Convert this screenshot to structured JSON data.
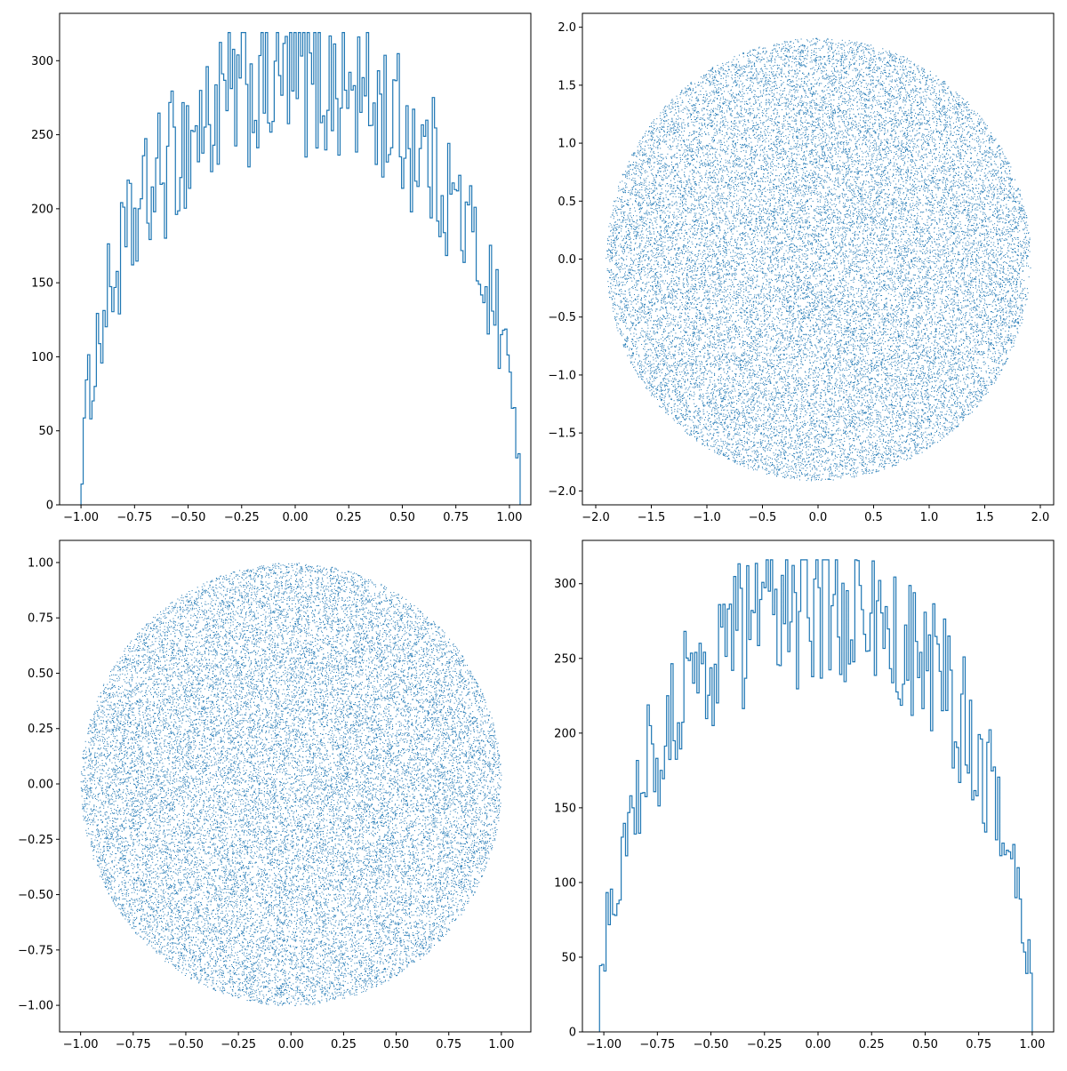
{
  "figure": {
    "color": "#1f77b4"
  },
  "chart_data": [
    {
      "type": "histogram",
      "position": "top-left",
      "title": "",
      "xlabel": "",
      "ylabel": "",
      "xlim": [
        -1.1,
        1.1
      ],
      "ylim": [
        0,
        332
      ],
      "xticks": [
        -1.0,
        -0.75,
        -0.5,
        -0.25,
        0.0,
        0.25,
        0.5,
        0.75,
        1.0
      ],
      "xtick_labels": [
        "−1.00",
        "−0.75",
        "−0.50",
        "−0.25",
        "0.00",
        "0.25",
        "0.50",
        "0.75",
        "1.00"
      ],
      "yticks": [
        0,
        50,
        100,
        150,
        200,
        250,
        300
      ],
      "ytick_labels": [
        "0",
        "50",
        "100",
        "150",
        "200",
        "250",
        "300"
      ],
      "bin_range": [
        -1.0,
        1.05
      ],
      "bins": 200,
      "peak_count": 319,
      "histtype": "step"
    },
    {
      "type": "scatter",
      "position": "top-right",
      "title": "",
      "xlabel": "",
      "ylabel": "",
      "xlim": [
        -2.12,
        2.12
      ],
      "ylim": [
        -2.12,
        2.12
      ],
      "xticks": [
        -2.0,
        -1.5,
        -1.0,
        -0.5,
        0.0,
        0.5,
        1.0,
        1.5,
        2.0
      ],
      "xtick_labels": [
        "−2.0",
        "−1.5",
        "−1.0",
        "−0.5",
        "0.0",
        "0.5",
        "1.0",
        "1.5",
        "2.0"
      ],
      "yticks": [
        -2.0,
        -1.5,
        -1.0,
        -0.5,
        0.0,
        0.5,
        1.0,
        1.5,
        2.0
      ],
      "ytick_labels": [
        "−2.0",
        "−1.5",
        "−1.0",
        "−0.5",
        "0.0",
        "0.5",
        "1.0",
        "1.5",
        "2.0"
      ],
      "shape": "disk",
      "center": [
        0.0,
        0.0
      ],
      "radius": 1.91,
      "marker": "pixel"
    },
    {
      "type": "scatter",
      "position": "bottom-left",
      "title": "",
      "xlabel": "",
      "ylabel": "",
      "xlim": [
        -1.1,
        1.14
      ],
      "ylim": [
        -1.12,
        1.1
      ],
      "xticks": [
        -1.0,
        -0.75,
        -0.5,
        -0.25,
        0.0,
        0.25,
        0.5,
        0.75,
        1.0
      ],
      "xtick_labels": [
        "−1.00",
        "−0.75",
        "−0.50",
        "−0.25",
        "0.00",
        "0.25",
        "0.50",
        "0.75",
        "1.00"
      ],
      "yticks": [
        -1.0,
        -0.75,
        -0.5,
        -0.25,
        0.0,
        0.25,
        0.5,
        0.75,
        1.0
      ],
      "ytick_labels": [
        "−1.00",
        "−0.75",
        "−0.50",
        "−0.25",
        "0.00",
        "0.25",
        "0.50",
        "0.75",
        "1.00"
      ],
      "shape": "disk",
      "center": [
        0.0,
        0.0
      ],
      "radius": 1.0,
      "marker": "pixel"
    },
    {
      "type": "histogram",
      "position": "bottom-right",
      "title": "",
      "xlabel": "",
      "ylabel": "",
      "xlim": [
        -1.1,
        1.1
      ],
      "ylim": [
        0,
        329
      ],
      "xticks": [
        -1.0,
        -0.75,
        -0.5,
        -0.25,
        0.0,
        0.25,
        0.5,
        0.75,
        1.0
      ],
      "xtick_labels": [
        "−1.00",
        "−0.75",
        "−0.50",
        "−0.25",
        "0.00",
        "0.25",
        "0.50",
        "0.75",
        "1.00"
      ],
      "yticks": [
        0,
        50,
        100,
        150,
        200,
        250,
        300
      ],
      "ytick_labels": [
        "0",
        "50",
        "100",
        "150",
        "200",
        "250",
        "300"
      ],
      "bin_range": [
        -1.02,
        1.0
      ],
      "bins": 200,
      "peak_count": 316,
      "histtype": "step"
    }
  ]
}
